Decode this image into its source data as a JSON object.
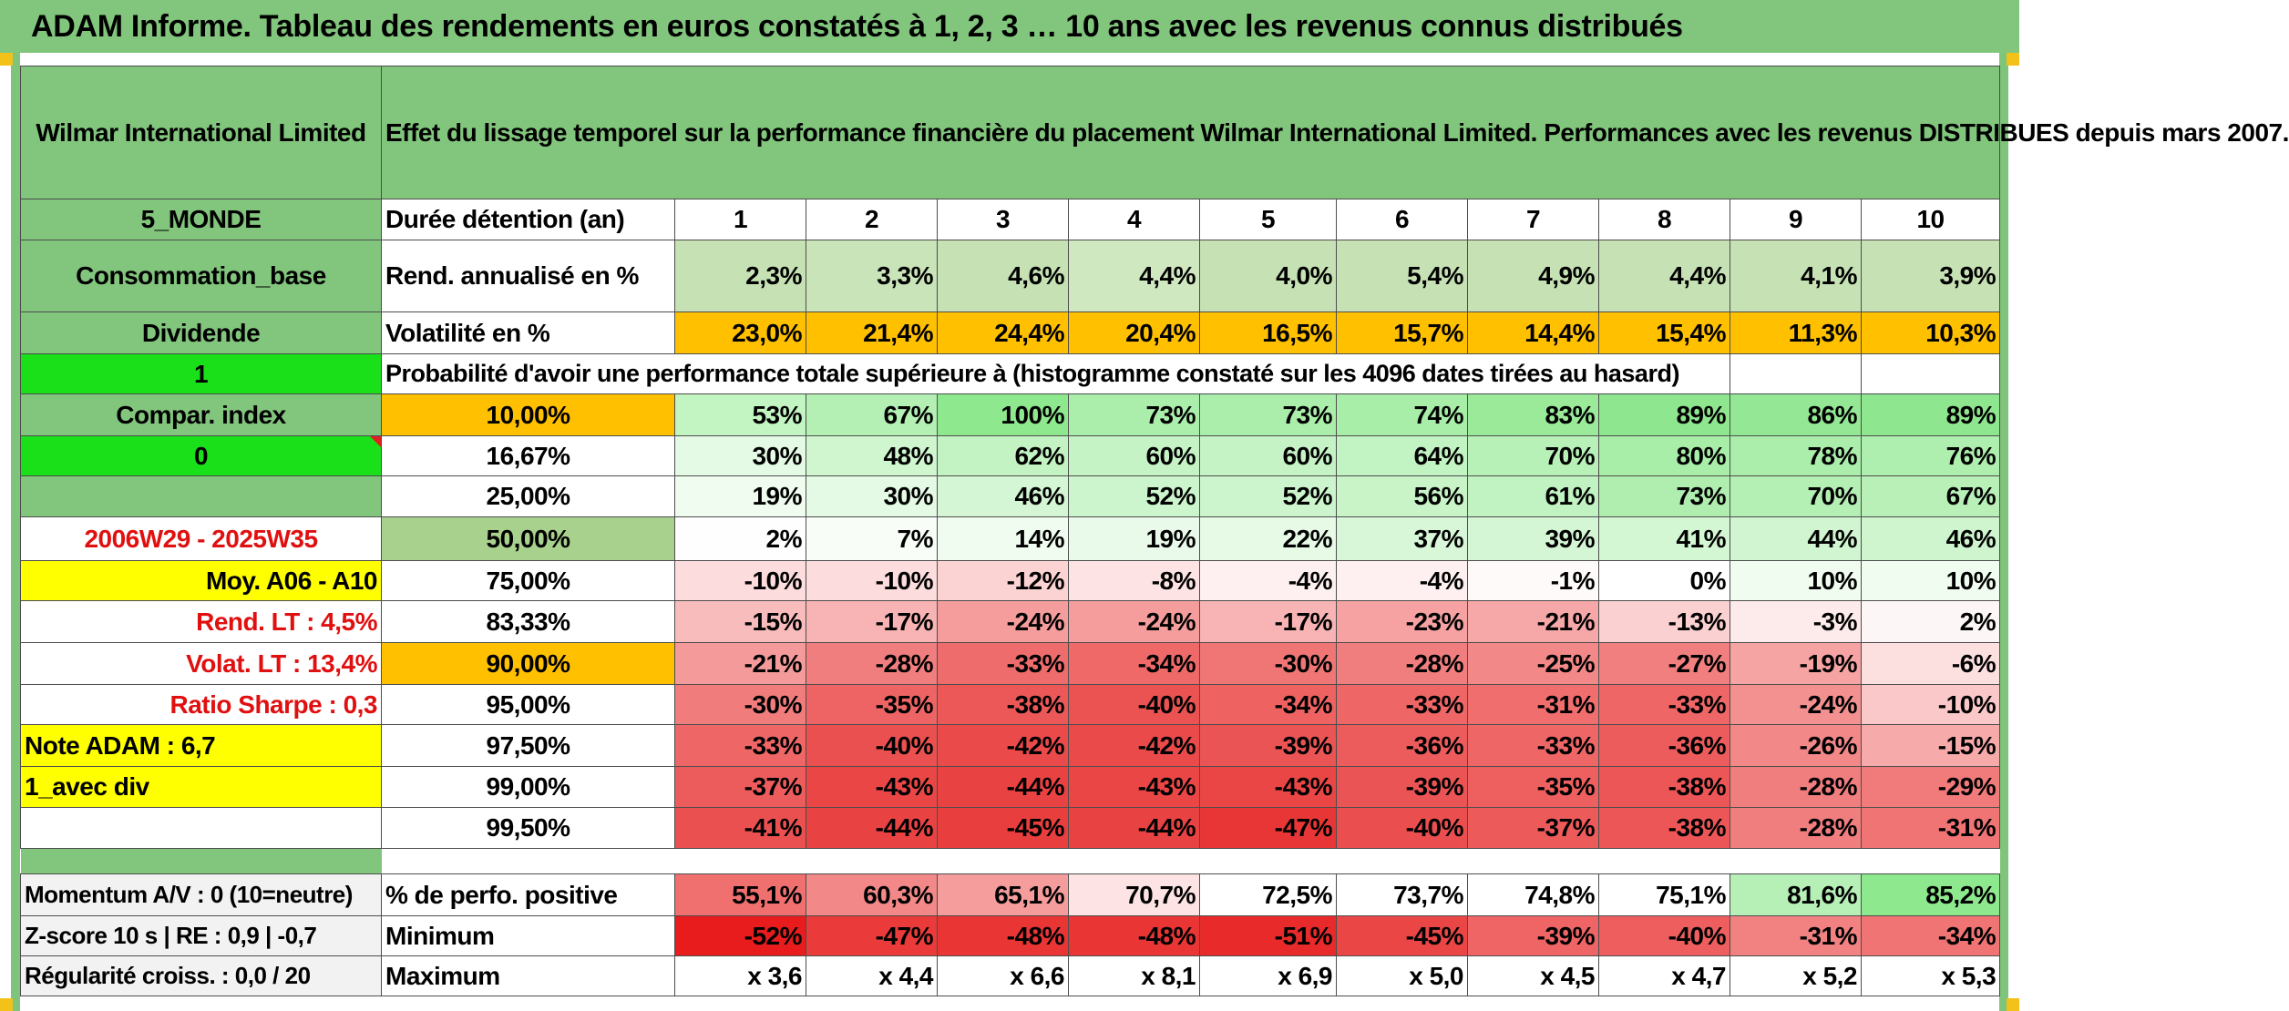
{
  "banner": "ADAM Informe. Tableau des rendements en euros constatés à 1, 2, 3 … 10 ans avec les revenus connus distribués",
  "header": {
    "left": "Wilmar International Limited",
    "title": "Effet du lissage temporel sur la performance financière du placement Wilmar International Limited. Performances avec les revenus DISTRIBUES depuis mars 2007."
  },
  "rows": {
    "duree": {
      "left": "5_MONDE",
      "label": "Durée détention (an)",
      "values": [
        "1",
        "2",
        "3",
        "4",
        "5",
        "6",
        "7",
        "8",
        "9",
        "10"
      ]
    },
    "rend": {
      "left": "Consommation_base",
      "label": "Rend. annualisé en %",
      "values": [
        "2,3%",
        "3,3%",
        "4,6%",
        "4,4%",
        "4,0%",
        "5,4%",
        "4,9%",
        "4,4%",
        "4,1%",
        "3,9%"
      ]
    },
    "volat": {
      "left": "Dividende",
      "label": "Volatilité en %",
      "values": [
        "23,0%",
        "21,4%",
        "24,4%",
        "20,4%",
        "16,5%",
        "15,7%",
        "14,4%",
        "15,4%",
        "11,3%",
        "10,3%"
      ]
    },
    "proba": {
      "left": "1",
      "label": "Probabilité d'avoir une performance totale supérieure à (histogramme constaté sur les 4096 dates tirées au hasard)"
    }
  },
  "quantiles": [
    {
      "left": "Compar. index",
      "q": "10,00%",
      "values": [
        "53%",
        "67%",
        "100%",
        "73%",
        "73%",
        "74%",
        "83%",
        "89%",
        "86%",
        "89%"
      ]
    },
    {
      "left": "0",
      "q": "16,67%",
      "values": [
        "30%",
        "48%",
        "62%",
        "60%",
        "60%",
        "64%",
        "70%",
        "80%",
        "78%",
        "76%"
      ]
    },
    {
      "left": "",
      "q": "25,00%",
      "values": [
        "19%",
        "30%",
        "46%",
        "52%",
        "52%",
        "56%",
        "61%",
        "73%",
        "70%",
        "67%"
      ]
    },
    {
      "left": "2006W29 - 2025W35",
      "q": "50,00%",
      "values": [
        "2%",
        "7%",
        "14%",
        "19%",
        "22%",
        "37%",
        "39%",
        "41%",
        "44%",
        "46%"
      ]
    },
    {
      "left": "Moy. A06 - A10",
      "q": "75,00%",
      "values": [
        "-10%",
        "-10%",
        "-12%",
        "-8%",
        "-4%",
        "-4%",
        "-1%",
        "0%",
        "10%",
        "10%"
      ]
    },
    {
      "left": "Rend. LT :   4,5%",
      "q": "83,33%",
      "values": [
        "-15%",
        "-17%",
        "-24%",
        "-24%",
        "-17%",
        "-23%",
        "-21%",
        "-13%",
        "-3%",
        "2%"
      ]
    },
    {
      "left": "Volat. LT :   13,4%",
      "q": "90,00%",
      "values": [
        "-21%",
        "-28%",
        "-33%",
        "-34%",
        "-30%",
        "-28%",
        "-25%",
        "-27%",
        "-19%",
        "-6%"
      ]
    },
    {
      "left": "Ratio Sharpe :   0,3",
      "q": "95,00%",
      "values": [
        "-30%",
        "-35%",
        "-38%",
        "-40%",
        "-34%",
        "-33%",
        "-31%",
        "-33%",
        "-24%",
        "-10%"
      ]
    },
    {
      "left": "Note ADAM : 6,7",
      "q": "97,50%",
      "values": [
        "-33%",
        "-40%",
        "-42%",
        "-42%",
        "-39%",
        "-36%",
        "-33%",
        "-36%",
        "-26%",
        "-15%"
      ]
    },
    {
      "left": "1_avec div",
      "q": "99,00%",
      "values": [
        "-37%",
        "-43%",
        "-44%",
        "-43%",
        "-43%",
        "-39%",
        "-35%",
        "-38%",
        "-28%",
        "-29%"
      ]
    },
    {
      "left": "",
      "q": "99,50%",
      "values": [
        "-41%",
        "-44%",
        "-45%",
        "-44%",
        "-47%",
        "-40%",
        "-37%",
        "-38%",
        "-28%",
        "-31%"
      ]
    }
  ],
  "bottom": [
    {
      "left": "Momentum A/V : 0 (10=neutre)",
      "label": "% de perfo. positive",
      "values": [
        "55,1%",
        "60,3%",
        "65,1%",
        "70,7%",
        "72,5%",
        "73,7%",
        "74,8%",
        "75,1%",
        "81,6%",
        "85,2%"
      ]
    },
    {
      "left": "Z-score 10 s | RE : 0,9 | -0,7",
      "label": "Minimum",
      "values": [
        "-52%",
        "-47%",
        "-48%",
        "-48%",
        "-51%",
        "-45%",
        "-39%",
        "-40%",
        "-31%",
        "-34%"
      ]
    },
    {
      "left": "Régularité croiss. : 0,0 / 20",
      "label": "Maximum",
      "values": [
        "x 3,6",
        "x 4,4",
        "x 6,6",
        "x 8,1",
        "x 6,9",
        "x 5,0",
        "x 4,5",
        "x 4,7",
        "x 5,2",
        "x 5,3"
      ]
    }
  ],
  "colors": {
    "header_green": "#82c67d",
    "bright_green": "#19e019",
    "yellow": "#ffff00",
    "orange": "#ffc000",
    "dark_red_text": "#e01010",
    "rend_cells": [
      "#c6e2b4",
      "#c9e4b8",
      "#c6e2b4",
      "#d0e8c0",
      "#c6e2b4",
      "#c6e2b4",
      "#c6e2b4",
      "#c6e2b4",
      "#c6e2b4",
      "#c6e2b4"
    ],
    "volat_cells": [
      "#ffc000",
      "#ffc000",
      "#ffc000",
      "#ffc000",
      "#ffc000",
      "#ffc000",
      "#ffc000",
      "#ffc000",
      "#ffc000",
      "#ffc000"
    ],
    "quantile_cells": [
      [
        "#c3f5c3",
        "#b4f0b4",
        "#8ee88e",
        "#abeeab",
        "#abeeab",
        "#a8eda8",
        "#9aea9a",
        "#8ee68e",
        "#94e794",
        "#8ee68e"
      ],
      [
        "#e5fae5",
        "#d0f6d0",
        "#c3f3c3",
        "#c6f3c6",
        "#c6f3c6",
        "#c2f3c2",
        "#b8f1b8",
        "#a8eda8",
        "#abeeab",
        "#aeeeae"
      ],
      [
        "#f0fcf0",
        "#e5fae5",
        "#d4f6d4",
        "#cdf5cd",
        "#cdf5cd",
        "#c8f4c8",
        "#c1f2c1",
        "#b0eeb0",
        "#b4efb4",
        "#b8f0b8"
      ],
      [
        "#fefefe",
        "#f8fdf8",
        "#f0fcf0",
        "#eafaea",
        "#e6fae6",
        "#d8f7d8",
        "#d5f6d5",
        "#d3f6d3",
        "#d0f5d0",
        "#cef5ce"
      ],
      [
        "#fcdcdc",
        "#fcdcdc",
        "#fbd3d3",
        "#fde3e3",
        "#fef0f0",
        "#fef0f0",
        "#fffafa",
        "#ffffff",
        "#f0fcf0",
        "#f0fcf0"
      ],
      [
        "#f9bcbc",
        "#f8b4b4",
        "#f59d9d",
        "#f59d9d",
        "#f8b4b4",
        "#f6a2a2",
        "#f6a8a8",
        "#fad0d0",
        "#fdeaea",
        "#fdf6f6"
      ],
      [
        "#f49a9a",
        "#f17e7e",
        "#ef6c6c",
        "#ef6969",
        "#f07676",
        "#f17e7e",
        "#f38888",
        "#f27f7f",
        "#f6a3a3",
        "#fce0e0"
      ],
      [
        "#f17c7c",
        "#ee6464",
        "#ec5858",
        "#eb5252",
        "#ee6262",
        "#ef6666",
        "#f06e6e",
        "#ef6666",
        "#f39090",
        "#fac8c8"
      ],
      [
        "#ef6666",
        "#eb5050",
        "#ea4a4a",
        "#ea4a4a",
        "#eb5454",
        "#ed5c5c",
        "#ef6666",
        "#ed5c5c",
        "#f28888",
        "#f7aaaa"
      ],
      [
        "#ed5c5c",
        "#ea4646",
        "#e94242",
        "#ea4646",
        "#ea4646",
        "#eb5454",
        "#ee6060",
        "#ec5656",
        "#f17e7e",
        "#f17a7a"
      ],
      [
        "#eb5050",
        "#e94242",
        "#e93e3e",
        "#e94242",
        "#e83636",
        "#eb4e4e",
        "#ed5a5a",
        "#ec5656",
        "#f17e7e",
        "#f07474"
      ]
    ],
    "positive_cells": [
      "#f07070",
      "#f38888",
      "#f59c9c",
      "#fde3e3",
      "#ffffff",
      "#ffffff",
      "#ffffff",
      "#ffffff",
      "#b6f0b6",
      "#8ee88e"
    ],
    "minimum_cells": [
      "#e81c1c",
      "#ea3a3a",
      "#ea3535",
      "#ea3535",
      "#e82a2a",
      "#eb4646",
      "#ef6464",
      "#ee5e5e",
      "#f28282",
      "#f07474"
    ]
  }
}
